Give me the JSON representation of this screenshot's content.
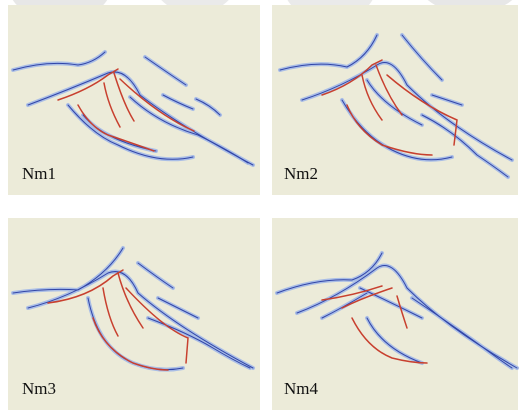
{
  "panels": [
    {
      "label": "Nm1"
    },
    {
      "label": "Nm2"
    },
    {
      "label": "Nm3"
    },
    {
      "label": "Nm4"
    }
  ]
}
